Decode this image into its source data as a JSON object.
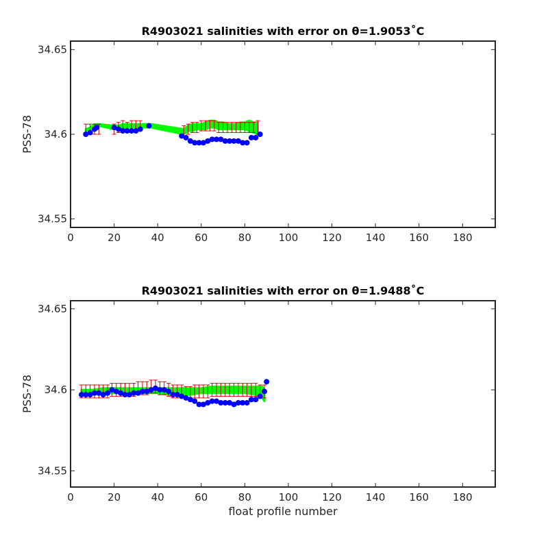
{
  "chart_data": [
    {
      "type": "scatter",
      "title": "R4903021 salinities with error on θ=1.9053˚C",
      "xlabel": "",
      "ylabel": "PSS-78",
      "xlim": [
        0,
        195
      ],
      "ylim": [
        34.545,
        34.655
      ],
      "xticks": [
        "0",
        "20",
        "40",
        "60",
        "80",
        "100",
        "120",
        "140",
        "160",
        "180"
      ],
      "yticks": [
        "34.55",
        "34.6",
        "34.65"
      ],
      "grid": false,
      "colors": {
        "band": "#00ff00",
        "error": "#cc0000",
        "float": "#0000ff"
      },
      "series": [
        {
          "role": "mapped-band",
          "x": [
            7,
            9,
            11,
            13,
            20,
            22,
            24,
            26,
            28,
            30,
            32,
            37,
            52,
            54,
            56,
            58,
            60,
            62,
            64,
            66,
            68,
            70,
            72,
            74,
            76,
            78,
            80,
            82,
            84,
            86
          ],
          "lower": [
            34.602,
            34.603,
            34.604,
            34.605,
            34.603,
            34.603,
            34.603,
            34.604,
            34.604,
            34.604,
            34.604,
            34.604,
            34.6,
            34.602,
            34.602,
            34.603,
            34.603,
            34.603,
            34.604,
            34.604,
            34.603,
            34.603,
            34.603,
            34.603,
            34.603,
            34.603,
            34.603,
            34.602,
            34.601,
            34.6
          ],
          "upper": [
            34.603,
            34.604,
            34.606,
            34.606,
            34.605,
            34.605,
            34.606,
            34.606,
            34.606,
            34.606,
            34.606,
            34.606,
            34.603,
            34.605,
            34.606,
            34.606,
            34.606,
            34.607,
            34.608,
            34.608,
            34.607,
            34.607,
            34.606,
            34.606,
            34.606,
            34.607,
            34.607,
            34.608,
            34.607,
            34.607
          ]
        },
        {
          "role": "error-bars",
          "x": [
            7,
            9,
            11,
            13,
            20,
            22,
            24,
            26,
            28,
            30,
            32,
            52,
            54,
            56,
            58,
            60,
            62,
            64,
            66,
            68,
            70,
            72,
            74,
            76,
            78,
            80,
            82,
            84,
            86
          ],
          "y": [
            34.603,
            34.603,
            34.603,
            34.603,
            34.603,
            34.604,
            34.605,
            34.604,
            34.605,
            34.605,
            34.605,
            34.602,
            34.603,
            34.604,
            34.604,
            34.605,
            34.605,
            34.605,
            34.605,
            34.604,
            34.604,
            34.604,
            34.604,
            34.604,
            34.604,
            34.604,
            34.604,
            34.604,
            34.604
          ],
          "err": [
            0.003,
            0.003,
            0.003,
            0.003,
            0.003,
            0.003,
            0.003,
            0.003,
            0.003,
            0.003,
            0.003,
            0.003,
            0.003,
            0.003,
            0.003,
            0.003,
            0.003,
            0.003,
            0.003,
            0.003,
            0.003,
            0.003,
            0.003,
            0.003,
            0.003,
            0.003,
            0.003,
            0.003,
            0.004
          ]
        },
        {
          "role": "float-salinity",
          "x": [
            7,
            9,
            11,
            12,
            20,
            22,
            24,
            26,
            28,
            30,
            32,
            36,
            51,
            53,
            55,
            57,
            59,
            61,
            63,
            65,
            67,
            69,
            71,
            73,
            75,
            77,
            79,
            81,
            83,
            85,
            87
          ],
          "y": [
            34.6,
            34.601,
            34.603,
            34.604,
            34.604,
            34.603,
            34.602,
            34.602,
            34.602,
            34.602,
            34.603,
            34.605,
            34.599,
            34.598,
            34.596,
            34.595,
            34.595,
            34.595,
            34.596,
            34.597,
            34.597,
            34.597,
            34.596,
            34.596,
            34.596,
            34.596,
            34.595,
            34.595,
            34.598,
            34.598,
            34.6
          ]
        }
      ]
    },
    {
      "type": "scatter",
      "title": "R4903021 salinities with error on θ=1.9488˚C",
      "xlabel": "float profile number",
      "ylabel": "PSS-78",
      "xlim": [
        0,
        195
      ],
      "ylim": [
        34.54,
        34.655
      ],
      "xticks": [
        "0",
        "20",
        "40",
        "60",
        "80",
        "100",
        "120",
        "140",
        "160",
        "180"
      ],
      "yticks": [
        "34.55",
        "34.6",
        "34.65"
      ],
      "grid": false,
      "colors": {
        "band": "#00ff00",
        "error": "#cc0000",
        "float": "#0000ff"
      },
      "series": [
        {
          "role": "mapped-band",
          "x": [
            5,
            10,
            15,
            20,
            25,
            30,
            35,
            40,
            45,
            50,
            55,
            60,
            65,
            70,
            75,
            80,
            85,
            88,
            89
          ],
          "lower": [
            34.598,
            34.598,
            34.598,
            34.598,
            34.598,
            34.598,
            34.598,
            34.598,
            34.597,
            34.597,
            34.597,
            34.598,
            34.598,
            34.598,
            34.598,
            34.598,
            34.597,
            34.595,
            34.593
          ],
          "upper": [
            34.6,
            34.6,
            34.601,
            34.601,
            34.601,
            34.601,
            34.601,
            34.601,
            34.601,
            34.601,
            34.601,
            34.601,
            34.602,
            34.602,
            34.602,
            34.602,
            34.602,
            34.602,
            34.6
          ]
        },
        {
          "role": "error-bars",
          "x": [
            5,
            7,
            9,
            11,
            13,
            15,
            17,
            19,
            21,
            23,
            25,
            27,
            29,
            31,
            33,
            35,
            37,
            39,
            41,
            43,
            45,
            47,
            49,
            51,
            53,
            55,
            57,
            59,
            61,
            63,
            65,
            67,
            69,
            71,
            73,
            75,
            77,
            79,
            81,
            83,
            85,
            87,
            89
          ],
          "y": [
            34.599,
            34.599,
            34.599,
            34.599,
            34.599,
            34.599,
            34.599,
            34.6,
            34.6,
            34.6,
            34.6,
            34.6,
            34.6,
            34.601,
            34.601,
            34.601,
            34.602,
            34.602,
            34.601,
            34.601,
            34.6,
            34.599,
            34.599,
            34.599,
            34.598,
            34.598,
            34.599,
            34.599,
            34.599,
            34.599,
            34.6,
            34.6,
            34.6,
            34.6,
            34.6,
            34.6,
            34.6,
            34.6,
            34.6,
            34.6,
            34.6,
            34.599,
            34.599
          ],
          "err": [
            0.004,
            0.004,
            0.004,
            0.004,
            0.004,
            0.004,
            0.004,
            0.004,
            0.004,
            0.004,
            0.004,
            0.004,
            0.004,
            0.004,
            0.004,
            0.004,
            0.004,
            0.004,
            0.004,
            0.004,
            0.004,
            0.004,
            0.004,
            0.004,
            0.004,
            0.004,
            0.004,
            0.004,
            0.004,
            0.004,
            0.004,
            0.004,
            0.004,
            0.004,
            0.004,
            0.004,
            0.004,
            0.004,
            0.004,
            0.004,
            0.004,
            0.004,
            0.004
          ]
        },
        {
          "role": "float-salinity",
          "x": [
            5,
            7,
            9,
            11,
            13,
            15,
            17,
            19,
            21,
            23,
            25,
            27,
            29,
            31,
            33,
            35,
            37,
            39,
            41,
            43,
            45,
            47,
            49,
            51,
            53,
            55,
            57,
            59,
            61,
            63,
            65,
            67,
            69,
            71,
            73,
            75,
            77,
            79,
            81,
            83,
            85,
            87,
            89,
            90
          ],
          "y": [
            34.597,
            34.597,
            34.597,
            34.598,
            34.598,
            34.597,
            34.598,
            34.6,
            34.599,
            34.598,
            34.597,
            34.597,
            34.598,
            34.598,
            34.599,
            34.599,
            34.6,
            34.601,
            34.6,
            34.6,
            34.599,
            34.597,
            34.597,
            34.596,
            34.595,
            34.594,
            34.593,
            34.591,
            34.591,
            34.592,
            34.593,
            34.593,
            34.592,
            34.592,
            34.592,
            34.591,
            34.592,
            34.592,
            34.592,
            34.594,
            34.594,
            34.596,
            34.599,
            34.605
          ]
        }
      ]
    }
  ]
}
